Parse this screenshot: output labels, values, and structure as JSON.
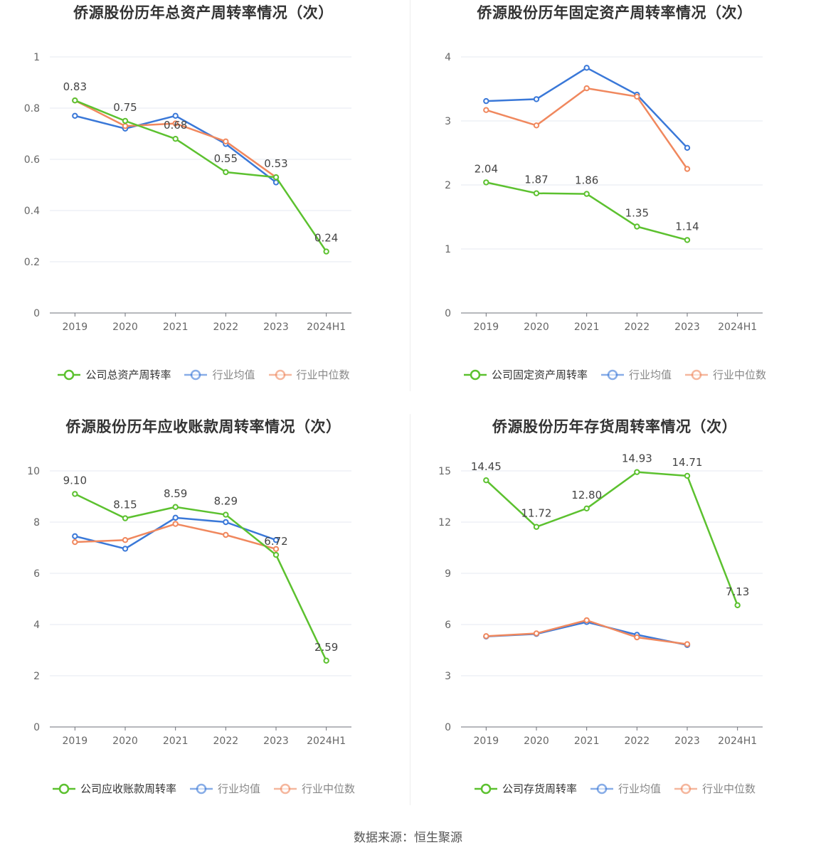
{
  "source_label": "数据来源：恒生聚源",
  "colors": {
    "company": "#5cc12f",
    "industry_avg": "#3a78d8",
    "industry_median": "#f0885e"
  },
  "chart_data": [
    {
      "type": "line",
      "title": "侨源股份历年总资产周转率情况（次）",
      "categories": [
        "2019",
        "2020",
        "2021",
        "2022",
        "2023",
        "2024H1"
      ],
      "ylim": [
        0,
        1
      ],
      "yticks": [
        "0",
        "0.2",
        "0.4",
        "0.6",
        "0.8",
        "1"
      ],
      "ytick_values": [
        0,
        0.2,
        0.4,
        0.6,
        0.8,
        1
      ],
      "series": [
        {
          "name": "公司总资产周转率",
          "key": "company",
          "values": [
            0.83,
            0.75,
            0.68,
            0.55,
            0.53,
            0.24
          ],
          "labels": [
            "0.83",
            "0.75",
            "0.68",
            "0.55",
            "0.53",
            "0.24"
          ]
        },
        {
          "name": "行业均值",
          "key": "industry_avg",
          "values": [
            0.77,
            0.72,
            0.77,
            0.66,
            0.51,
            null
          ]
        },
        {
          "name": "行业中位数",
          "key": "industry_median",
          "values": [
            0.83,
            0.73,
            0.74,
            0.67,
            0.53,
            null
          ]
        }
      ]
    },
    {
      "type": "line",
      "title": "侨源股份历年固定资产周转率情况（次）",
      "categories": [
        "2019",
        "2020",
        "2021",
        "2022",
        "2023",
        "2024H1"
      ],
      "ylim": [
        0,
        4
      ],
      "yticks": [
        "0",
        "1",
        "2",
        "3",
        "4"
      ],
      "ytick_values": [
        0,
        1,
        2,
        3,
        4
      ],
      "series": [
        {
          "name": "公司固定资产周转率",
          "key": "company",
          "values": [
            2.04,
            1.87,
            1.86,
            1.35,
            1.14,
            null
          ],
          "labels": [
            "2.04",
            "1.87",
            "1.86",
            "1.35",
            "1.14",
            ""
          ]
        },
        {
          "name": "行业均值",
          "key": "industry_avg",
          "values": [
            3.31,
            3.34,
            3.83,
            3.41,
            2.58,
            null
          ]
        },
        {
          "name": "行业中位数",
          "key": "industry_median",
          "values": [
            3.17,
            2.93,
            3.51,
            3.38,
            2.25,
            null
          ]
        }
      ]
    },
    {
      "type": "line",
      "title": "侨源股份历年应收账款周转率情况（次）",
      "categories": [
        "2019",
        "2020",
        "2021",
        "2022",
        "2023",
        "2024H1"
      ],
      "ylim": [
        0,
        10
      ],
      "yticks": [
        "0",
        "2",
        "4",
        "6",
        "8",
        "10"
      ],
      "ytick_values": [
        0,
        2,
        4,
        6,
        8,
        10
      ],
      "series": [
        {
          "name": "公司应收账款周转率",
          "key": "company",
          "values": [
            9.1,
            8.15,
            8.59,
            8.29,
            6.72,
            2.59
          ],
          "labels": [
            "9.10",
            "8.15",
            "8.59",
            "8.29",
            "6.72",
            "2.59"
          ]
        },
        {
          "name": "行业均值",
          "key": "industry_avg",
          "values": [
            7.45,
            6.96,
            8.17,
            8.0,
            7.3,
            null
          ]
        },
        {
          "name": "行业中位数",
          "key": "industry_median",
          "values": [
            7.22,
            7.3,
            7.93,
            7.5,
            6.95,
            null
          ]
        }
      ]
    },
    {
      "type": "line",
      "title": "侨源股份历年存货周转率情况（次）",
      "categories": [
        "2019",
        "2020",
        "2021",
        "2022",
        "2023",
        "2024H1"
      ],
      "ylim": [
        0,
        15
      ],
      "yticks": [
        "0",
        "3",
        "6",
        "9",
        "12",
        "15"
      ],
      "ytick_values": [
        0,
        3,
        6,
        9,
        12,
        15
      ],
      "series": [
        {
          "name": "公司存货周转率",
          "key": "company",
          "values": [
            14.45,
            11.72,
            12.8,
            14.93,
            14.71,
            7.13
          ],
          "labels": [
            "14.45",
            "11.72",
            "12.80",
            "14.93",
            "14.71",
            "7.13"
          ]
        },
        {
          "name": "行业均值",
          "key": "industry_avg",
          "values": [
            5.3,
            5.45,
            6.15,
            5.4,
            4.8,
            null
          ]
        },
        {
          "name": "行业中位数",
          "key": "industry_median",
          "values": [
            5.32,
            5.48,
            6.25,
            5.25,
            4.85,
            null
          ]
        }
      ]
    }
  ]
}
